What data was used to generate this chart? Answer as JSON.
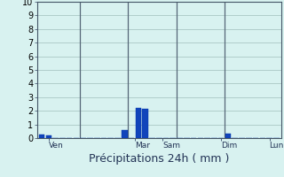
{
  "title": "Précipitations 24h ( mm )",
  "ylim": [
    0,
    10
  ],
  "yticks": [
    0,
    1,
    2,
    3,
    4,
    5,
    6,
    7,
    8,
    9,
    10
  ],
  "bar_color": "#1144bb",
  "bar_edge_color": "#0033aa",
  "background_color": "#d8f2f0",
  "grid_color": "#aac8c4",
  "vline_color": "#556677",
  "num_bars": 35,
  "bar_values": [
    0.25,
    0.2,
    0.0,
    0.0,
    0.0,
    0.0,
    0.0,
    0.0,
    0.0,
    0.0,
    0.0,
    0.0,
    0.6,
    0.0,
    2.2,
    2.15,
    0.0,
    0.0,
    0.0,
    0.0,
    0.0,
    0.0,
    0.0,
    0.0,
    0.0,
    0.0,
    0.0,
    0.3,
    0.0,
    0.0,
    0.0,
    0.0,
    0.0,
    0.0,
    0.0
  ],
  "day_labels": [
    "Ven",
    "Mar",
    "Sam",
    "Dim",
    "Lun"
  ],
  "day_tick_positions": [
    1,
    13.5,
    17.5,
    26,
    33
  ],
  "day_vline_positions": [
    5.5,
    12.5,
    19.5,
    26.5
  ],
  "title_fontsize": 9,
  "tick_fontsize": 6.5,
  "ytick_fontsize": 7
}
